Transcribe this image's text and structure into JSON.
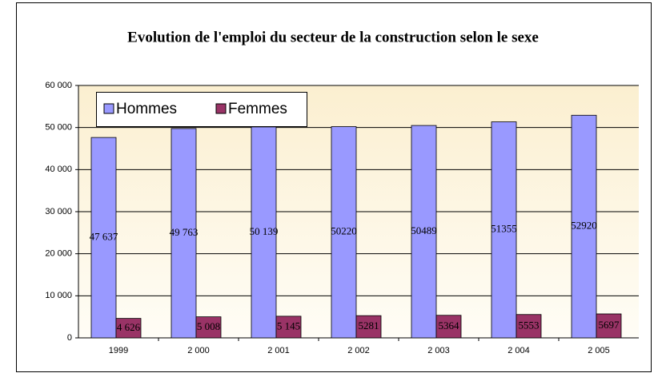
{
  "chart_data": {
    "type": "bar",
    "title": "Evolution de l'emploi du secteur de la construction selon le sexe",
    "categories": [
      "1999",
      "2 000",
      "2 001",
      "2 002",
      "2 003",
      "2 004",
      "2 005"
    ],
    "series": [
      {
        "name": "Hommes",
        "color": "#9999ff",
        "values": [
          47637,
          49763,
          50139,
          50220,
          50489,
          51355,
          52920
        ],
        "value_labels": [
          "47 637",
          "49 763",
          "50 139",
          "50220",
          "50489",
          "51355",
          "52920"
        ]
      },
      {
        "name": "Femmes",
        "color": "#993366",
        "values": [
          4626,
          5008,
          5145,
          5281,
          5364,
          5553,
          5697
        ],
        "value_labels": [
          "4 626",
          "5 008",
          "5 145",
          "5281",
          "5364",
          "5553",
          "5697"
        ]
      }
    ],
    "ylim": [
      0,
      60000
    ],
    "yticks": [
      0,
      {
        "value": 10000,
        "label": "10 000"
      },
      {
        "value": 20000,
        "label": "20 000"
      },
      {
        "value": 30000,
        "label": "30 000"
      },
      {
        "value": 40000,
        "label": "40 000"
      },
      {
        "value": 50000,
        "label": "50 000"
      },
      {
        "value": 60000,
        "label": "60 000"
      }
    ],
    "grid": true,
    "legend": "top-left"
  }
}
